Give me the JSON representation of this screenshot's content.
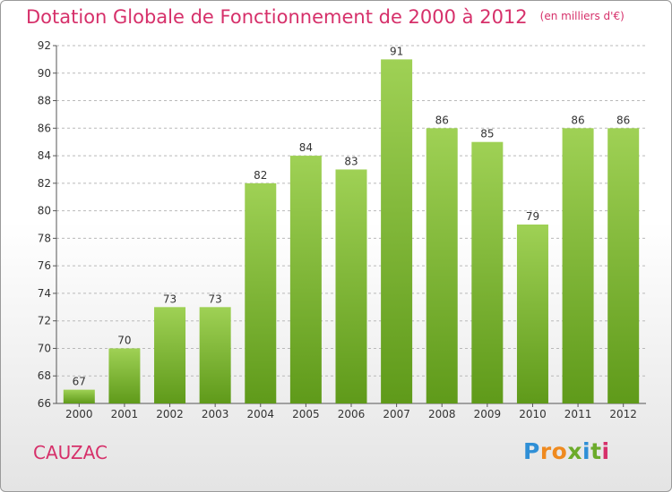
{
  "header": {
    "title": "Dotation Globale de Fonctionnement de 2000 à 2012",
    "unit": "(en milliers d'€)"
  },
  "commune": "CAUZAC",
  "brand": {
    "letters": [
      "P",
      "r",
      "o",
      "x",
      "i",
      "t",
      "i"
    ]
  },
  "colors": {
    "title": "#d6306a",
    "bar_light": "#9fd155",
    "bar_dark": "#5f9a1a",
    "grid": "#b9b9b9"
  },
  "chart_data": {
    "type": "bar",
    "title": "Dotation Globale de Fonctionnement de 2000 à 2012",
    "xlabel": "",
    "ylabel": "",
    "categories": [
      "2000",
      "2001",
      "2002",
      "2003",
      "2004",
      "2005",
      "2006",
      "2007",
      "2008",
      "2009",
      "2010",
      "2011",
      "2012"
    ],
    "values": [
      67,
      70,
      73,
      73,
      82,
      84,
      83,
      91,
      86,
      85,
      79,
      86,
      86
    ],
    "ylim": [
      66,
      92
    ],
    "yticks": [
      66,
      68,
      70,
      72,
      74,
      76,
      78,
      80,
      82,
      84,
      86,
      88,
      90,
      92
    ],
    "grid": true
  }
}
